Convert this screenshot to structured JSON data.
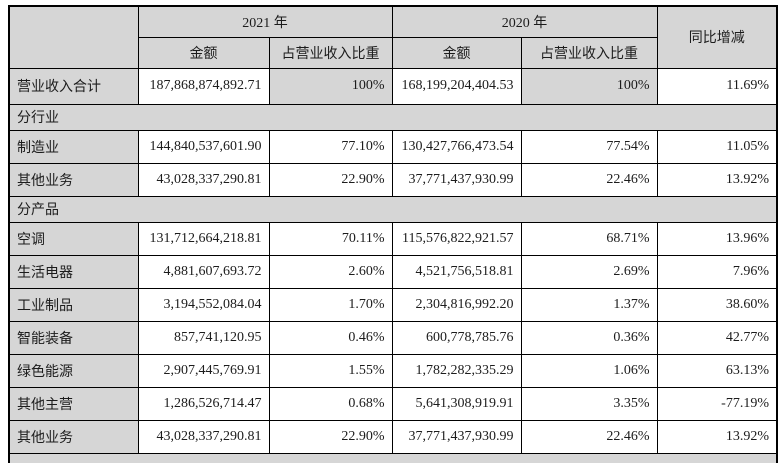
{
  "colors": {
    "header_bg": "#d6d6d6",
    "cell_bg": "#ffffff",
    "border": "#000000"
  },
  "table": {
    "header": {
      "year_2021": "2021 年",
      "year_2020": "2020 年",
      "yoy": "同比增减",
      "amount": "金额",
      "ratio": "占营业收入比重"
    },
    "rows": [
      {
        "type": "data",
        "shaded_ratio": true,
        "tall": true,
        "label": "营业收入合计",
        "amount_2021": "187,868,874,892.71",
        "ratio_2021": "100%",
        "amount_2020": "168,199,204,404.53",
        "ratio_2020": "100%",
        "yoy": "11.69%"
      },
      {
        "type": "section",
        "label": "分行业"
      },
      {
        "type": "data",
        "shaded_ratio": false,
        "tall": false,
        "label": "制造业",
        "amount_2021": "144,840,537,601.90",
        "ratio_2021": "77.10%",
        "amount_2020": "130,427,766,473.54",
        "ratio_2020": "77.54%",
        "yoy": "11.05%"
      },
      {
        "type": "data",
        "shaded_ratio": false,
        "tall": false,
        "label": "其他业务",
        "amount_2021": "43,028,337,290.81",
        "ratio_2021": "22.90%",
        "amount_2020": "37,771,437,930.99",
        "ratio_2020": "22.46%",
        "yoy": "13.92%"
      },
      {
        "type": "section",
        "label": "分产品"
      },
      {
        "type": "data",
        "shaded_ratio": false,
        "tall": false,
        "label": "空调",
        "amount_2021": "131,712,664,218.81",
        "ratio_2021": "70.11%",
        "amount_2020": "115,576,822,921.57",
        "ratio_2020": "68.71%",
        "yoy": "13.96%"
      },
      {
        "type": "data",
        "shaded_ratio": false,
        "tall": false,
        "label": "生活电器",
        "amount_2021": "4,881,607,693.72",
        "ratio_2021": "2.60%",
        "amount_2020": "4,521,756,518.81",
        "ratio_2020": "2.69%",
        "yoy": "7.96%"
      },
      {
        "type": "data",
        "shaded_ratio": false,
        "tall": false,
        "label": "工业制品",
        "amount_2021": "3,194,552,084.04",
        "ratio_2021": "1.70%",
        "amount_2020": "2,304,816,992.20",
        "ratio_2020": "1.37%",
        "yoy": "38.60%"
      },
      {
        "type": "data",
        "shaded_ratio": false,
        "tall": false,
        "label": "智能装备",
        "amount_2021": "857,741,120.95",
        "ratio_2021": "0.46%",
        "amount_2020": "600,778,785.76",
        "ratio_2020": "0.36%",
        "yoy": "42.77%"
      },
      {
        "type": "data",
        "shaded_ratio": false,
        "tall": false,
        "label": "绿色能源",
        "amount_2021": "2,907,445,769.91",
        "ratio_2021": "1.55%",
        "amount_2020": "1,782,282,335.29",
        "ratio_2020": "1.06%",
        "yoy": "63.13%"
      },
      {
        "type": "data",
        "shaded_ratio": false,
        "tall": false,
        "label": "其他主营",
        "amount_2021": "1,286,526,714.47",
        "ratio_2021": "0.68%",
        "amount_2020": "5,641,308,919.91",
        "ratio_2020": "3.35%",
        "yoy": "-77.19%"
      },
      {
        "type": "data",
        "shaded_ratio": false,
        "tall": false,
        "label": "其他业务",
        "amount_2021": "43,028,337,290.81",
        "ratio_2021": "22.90%",
        "amount_2020": "37,771,437,930.99",
        "ratio_2020": "22.46%",
        "yoy": "13.92%"
      },
      {
        "type": "section",
        "partial": true,
        "label": ""
      }
    ]
  }
}
